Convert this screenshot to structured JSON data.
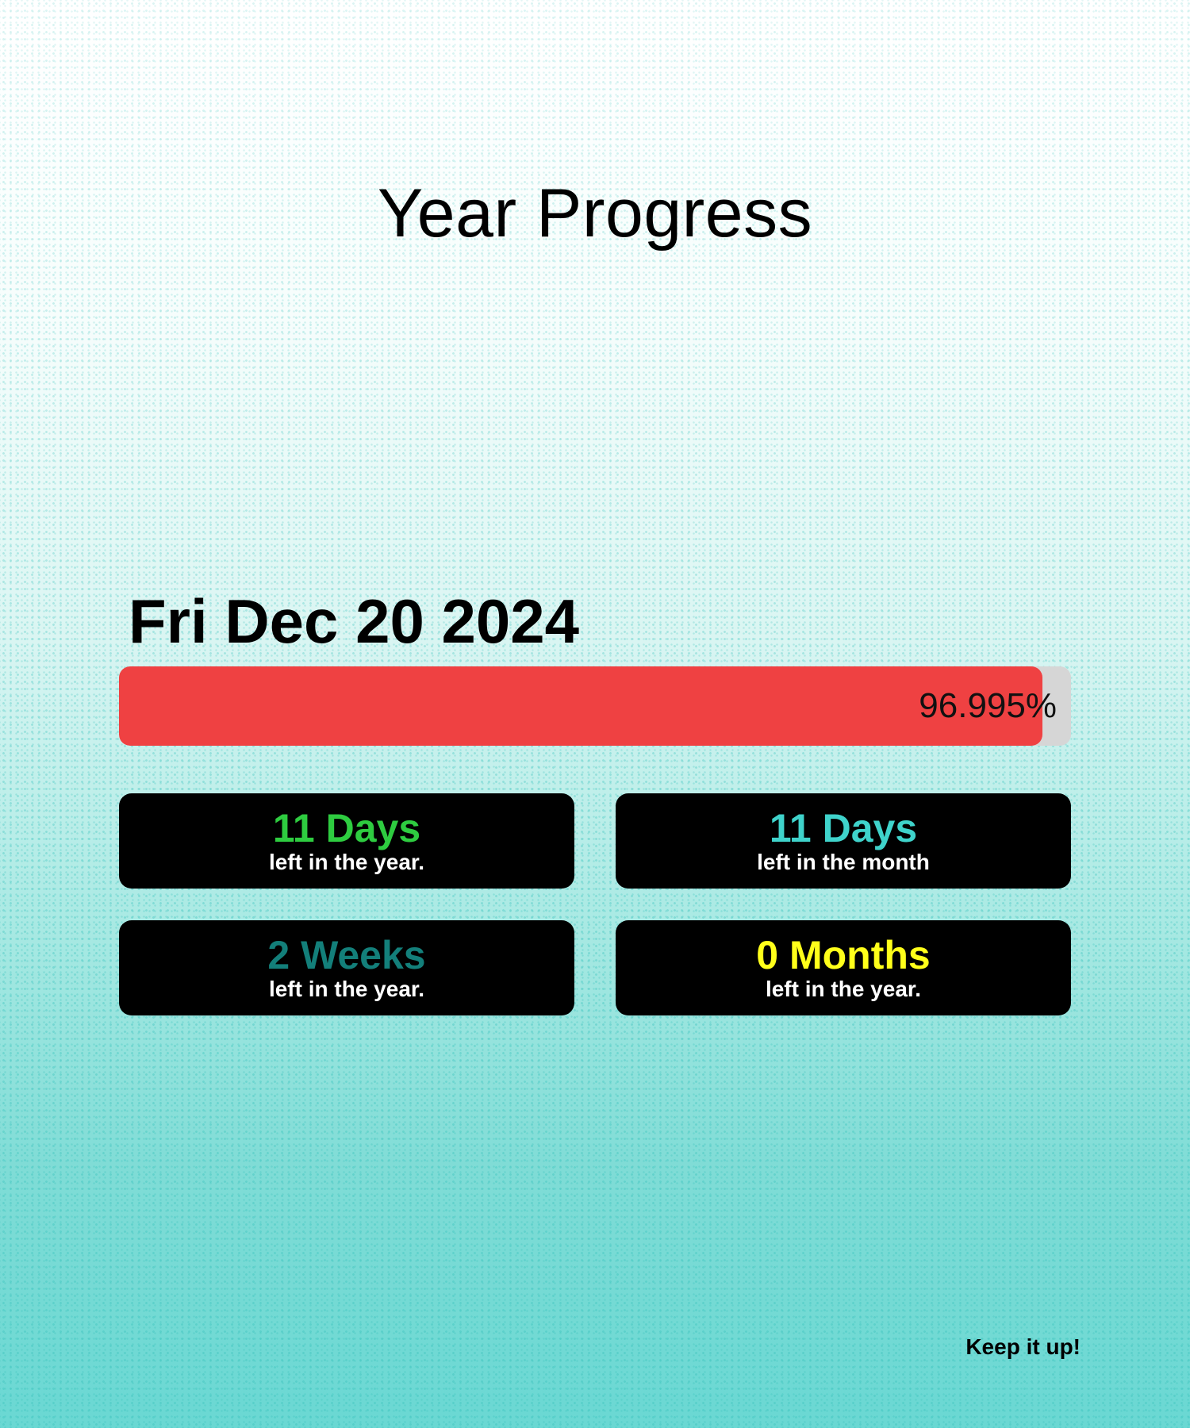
{
  "title": "Year Progress",
  "date": "Fri Dec 20 2024",
  "progress": {
    "percent": 96.995,
    "label": "96.995%",
    "fill_color": "#ef4142",
    "track_color": "#d6d6d6"
  },
  "cards": [
    {
      "value": "11 Days",
      "caption": "left in the year.",
      "color": "#2ecc40"
    },
    {
      "value": "11 Days",
      "caption": "left in the month",
      "color": "#3fd3cb"
    },
    {
      "value": "2 Weeks",
      "caption": "left in the year.",
      "color": "#137f7a"
    },
    {
      "value": "0 Months",
      "caption": "left in the year.",
      "color": "#ffff1a"
    }
  ],
  "footer": "Keep it up!"
}
